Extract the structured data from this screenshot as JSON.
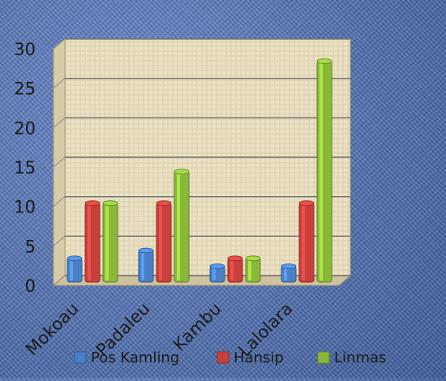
{
  "chart_data": {
    "type": "bar",
    "categories": [
      "Mokoau",
      "Padaleu",
      "Kambu",
      "Lalolara"
    ],
    "series": [
      {
        "name": "Pos Kamling",
        "values": [
          3,
          4,
          2,
          2
        ],
        "color": "#4a7fc8"
      },
      {
        "name": "Hansip",
        "values": [
          10,
          10,
          3,
          10
        ],
        "color": "#c8403c"
      },
      {
        "name": "Linmas",
        "values": [
          10,
          14,
          3,
          28
        ],
        "color": "#8ab83a"
      }
    ],
    "ylim": [
      0,
      30
    ],
    "yticks": [
      0,
      5,
      10,
      15,
      20,
      25,
      30
    ],
    "grid": true,
    "legend": "bottom",
    "plot_background": "#ede3c8"
  }
}
